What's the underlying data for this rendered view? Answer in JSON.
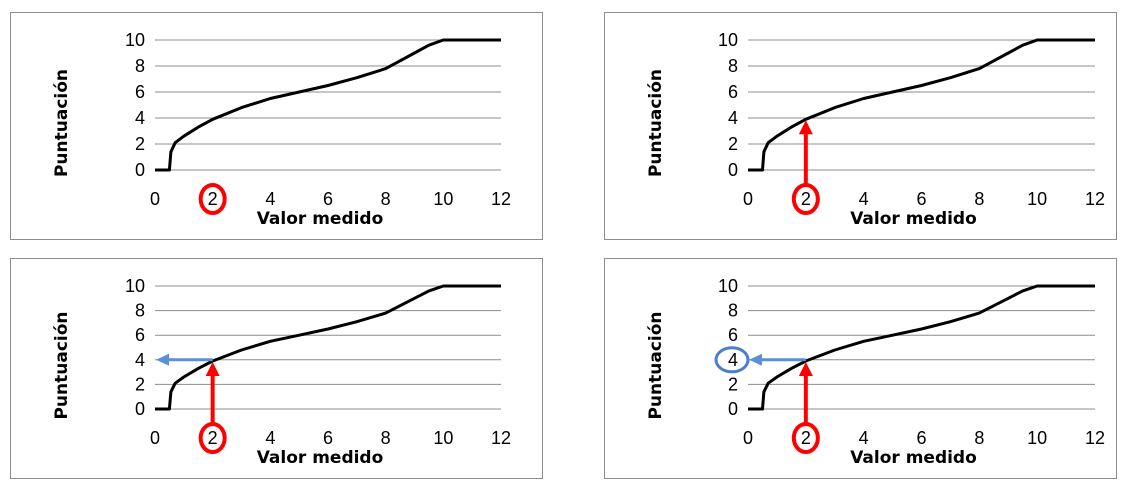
{
  "colors": {
    "curve": "#000000",
    "grid": "#8c8c8c",
    "highlight_red": "#ff0000",
    "arrow_blue": "#5b8fd8",
    "circle_blue": "#4a7ed0"
  },
  "chart_data": [
    {
      "type": "line",
      "panel": 1,
      "xlabel": "Valor medido",
      "ylabel": "Puntuación",
      "xlim": [
        0,
        12
      ],
      "ylim": [
        0,
        10
      ],
      "x_ticks": [
        "0",
        "2",
        "4",
        "6",
        "8",
        "10",
        "12"
      ],
      "y_ticks": [
        "0",
        "2",
        "4",
        "6",
        "8",
        "10"
      ],
      "grid": "horizontal",
      "series": [
        {
          "x": [
            0,
            0.5,
            0.55,
            0.7,
            1,
            1.5,
            2,
            3,
            4,
            5,
            6,
            7,
            8,
            8.5,
            9,
            9.5,
            10,
            11,
            12
          ],
          "y": [
            0,
            0,
            1.4,
            2.1,
            2.6,
            3.3,
            3.9,
            4.8,
            5.5,
            6.0,
            6.5,
            7.1,
            7.8,
            8.4,
            9.0,
            9.6,
            10,
            10,
            10
          ]
        }
      ],
      "annotations": [
        "red circle around x=2"
      ]
    },
    {
      "type": "line",
      "panel": 2,
      "xlabel": "Valor medido",
      "ylabel": "Puntuación",
      "xlim": [
        0,
        12
      ],
      "ylim": [
        0,
        10
      ],
      "x_ticks": [
        "0",
        "2",
        "4",
        "6",
        "8",
        "10",
        "12"
      ],
      "y_ticks": [
        "0",
        "2",
        "4",
        "6",
        "8",
        "10"
      ],
      "grid": "horizontal",
      "series": [
        {
          "x": [
            0,
            0.5,
            0.55,
            0.7,
            1,
            1.5,
            2,
            3,
            4,
            5,
            6,
            7,
            8,
            8.5,
            9,
            9.5,
            10,
            11,
            12
          ],
          "y": [
            0,
            0,
            1.4,
            2.1,
            2.6,
            3.3,
            3.9,
            4.8,
            5.5,
            6.0,
            6.5,
            7.1,
            7.8,
            8.4,
            9.0,
            9.6,
            10,
            10,
            10
          ]
        }
      ],
      "annotations": [
        "red circle around x=2",
        "red arrow up from x=2 to curve"
      ]
    },
    {
      "type": "line",
      "panel": 3,
      "xlabel": "Valor medido",
      "ylabel": "Puntuación",
      "xlim": [
        0,
        12
      ],
      "ylim": [
        0,
        10
      ],
      "x_ticks": [
        "0",
        "2",
        "4",
        "6",
        "8",
        "10",
        "12"
      ],
      "y_ticks": [
        "0",
        "2",
        "4",
        "6",
        "8",
        "10"
      ],
      "grid": "horizontal",
      "series": [
        {
          "x": [
            0,
            0.5,
            0.55,
            0.7,
            1,
            1.5,
            2,
            3,
            4,
            5,
            6,
            7,
            8,
            8.5,
            9,
            9.5,
            10,
            11,
            12
          ],
          "y": [
            0,
            0,
            1.4,
            2.1,
            2.6,
            3.3,
            3.9,
            4.8,
            5.5,
            6.0,
            6.5,
            7.1,
            7.8,
            8.4,
            9.0,
            9.6,
            10,
            10,
            10
          ]
        }
      ],
      "annotations": [
        "red circle around x=2",
        "red arrow up from x=2 to curve",
        "blue arrow left from curve to y=4"
      ]
    },
    {
      "type": "line",
      "panel": 4,
      "xlabel": "Valor medido",
      "ylabel": "Puntuación",
      "xlim": [
        0,
        12
      ],
      "ylim": [
        0,
        10
      ],
      "x_ticks": [
        "0",
        "2",
        "4",
        "6",
        "8",
        "10",
        "12"
      ],
      "y_ticks": [
        "0",
        "2",
        "4",
        "6",
        "8",
        "10"
      ],
      "grid": "horizontal",
      "series": [
        {
          "x": [
            0,
            0.5,
            0.55,
            0.7,
            1,
            1.5,
            2,
            3,
            4,
            5,
            6,
            7,
            8,
            8.5,
            9,
            9.5,
            10,
            11,
            12
          ],
          "y": [
            0,
            0,
            1.4,
            2.1,
            2.6,
            3.3,
            3.9,
            4.8,
            5.5,
            6.0,
            6.5,
            7.1,
            7.8,
            8.4,
            9.0,
            9.6,
            10,
            10,
            10
          ]
        }
      ],
      "annotations": [
        "red circle around x=2",
        "red arrow up from x=2 to curve",
        "blue arrow left from curve to y=4",
        "blue circle around y=4"
      ]
    }
  ]
}
